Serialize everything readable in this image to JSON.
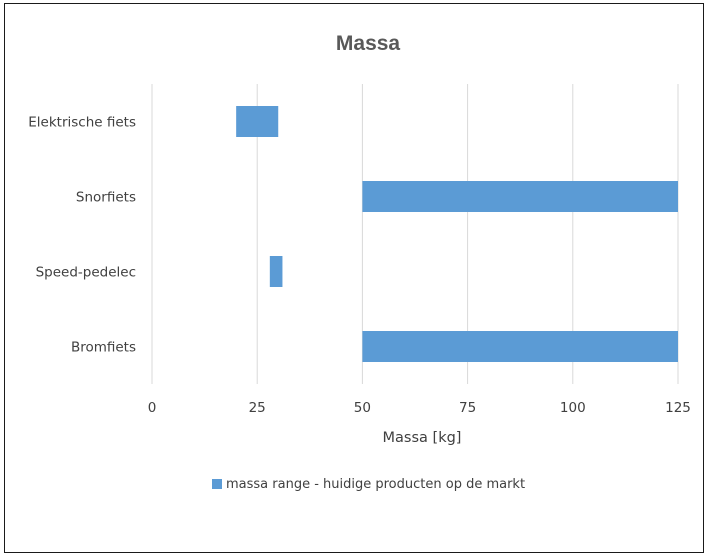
{
  "chart_data": {
    "type": "bar",
    "orientation": "horizontal",
    "style": "floating-range",
    "title": "Massa",
    "xlabel": "Massa [kg]",
    "ylabel": "",
    "xlim": [
      0,
      125
    ],
    "xticks": [
      0,
      25,
      50,
      75,
      100,
      125
    ],
    "grid": true,
    "legend_position": "bottom",
    "categories": [
      "Elektrische fiets",
      "Snorfiets",
      "Speed-pedelec",
      "Bromfiets"
    ],
    "series": [
      {
        "name": "massa range - huidige producten op de markt",
        "color": "#5b9bd5",
        "ranges": [
          [
            20,
            30
          ],
          [
            50,
            125
          ],
          [
            28,
            31
          ],
          [
            50,
            125
          ]
        ]
      }
    ]
  }
}
